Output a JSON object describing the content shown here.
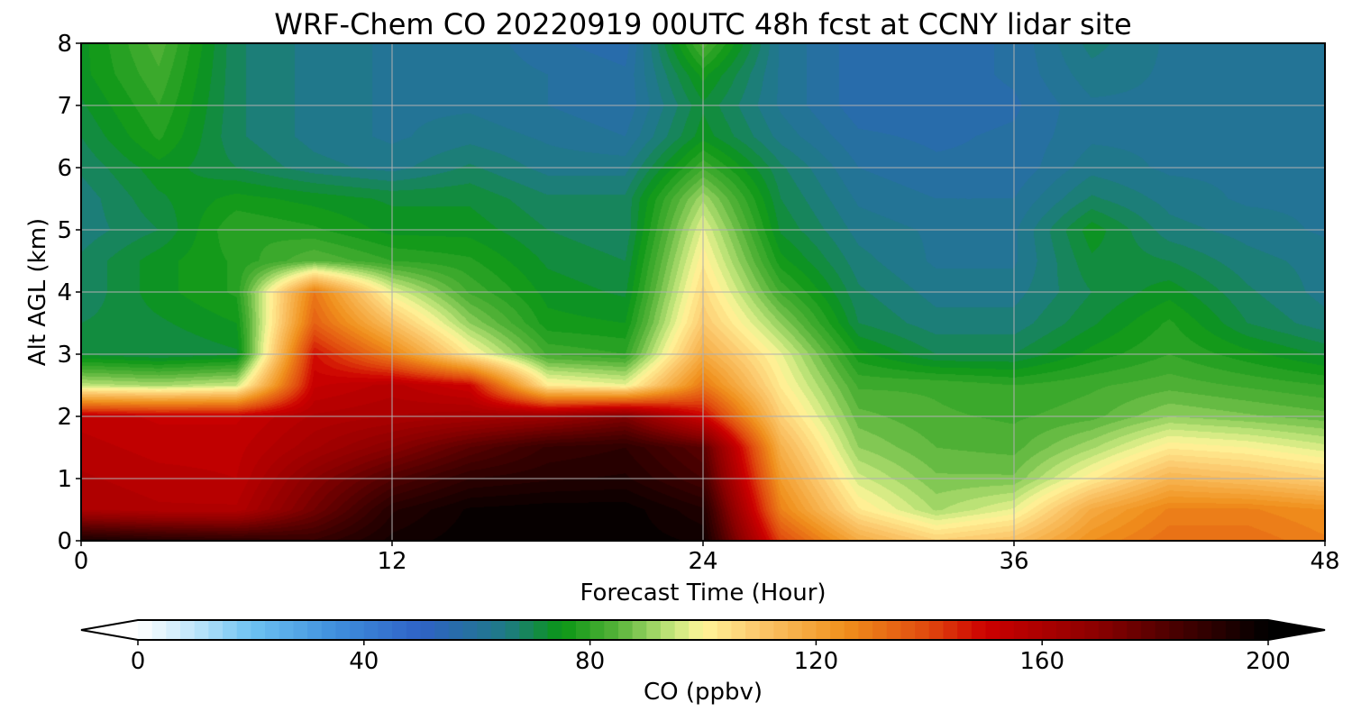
{
  "chart_data": {
    "type": "heatmap",
    "title": "WRF-Chem CO  20220919 00UTC 48h fcst at CCNY lidar site",
    "xlabel": "Forecast Time (Hour)",
    "ylabel": "Alt AGL (km)",
    "xlim": [
      0,
      48
    ],
    "ylim": [
      0,
      8
    ],
    "x_ticks": [
      "0",
      "12",
      "24",
      "36",
      "48"
    ],
    "y_ticks": [
      "0",
      "1",
      "2",
      "3",
      "4",
      "5",
      "6",
      "7",
      "8"
    ],
    "grid": true,
    "colorbar": {
      "label": "CO  (ppbv)",
      "range": [
        0,
        200
      ],
      "ticks": [
        "0",
        "40",
        "80",
        "120",
        "160",
        "200"
      ],
      "extend": "both",
      "stops": [
        {
          "v": 0,
          "c": "#ffffff"
        },
        {
          "v": 10,
          "c": "#bfe6fa"
        },
        {
          "v": 20,
          "c": "#6ec3f2"
        },
        {
          "v": 35,
          "c": "#3f8fdc"
        },
        {
          "v": 50,
          "c": "#2f62c6"
        },
        {
          "v": 65,
          "c": "#1f7a86"
        },
        {
          "v": 75,
          "c": "#0a9615"
        },
        {
          "v": 85,
          "c": "#58b43a"
        },
        {
          "v": 95,
          "c": "#c9e87e"
        },
        {
          "v": 100,
          "c": "#fff59a"
        },
        {
          "v": 110,
          "c": "#fbc66b"
        },
        {
          "v": 125,
          "c": "#f0901c"
        },
        {
          "v": 140,
          "c": "#e0480e"
        },
        {
          "v": 150,
          "c": "#cc0000"
        },
        {
          "v": 170,
          "c": "#8a0000"
        },
        {
          "v": 185,
          "c": "#420000"
        },
        {
          "v": 200,
          "c": "#000000"
        }
      ]
    },
    "field": {
      "x": [
        0,
        3,
        6,
        9,
        12,
        15,
        18,
        21,
        24,
        27,
        30,
        33,
        36,
        39,
        42,
        45,
        48
      ],
      "y": [
        0,
        0.5,
        1,
        1.5,
        2,
        2.5,
        3,
        3.5,
        4,
        4.5,
        5,
        5.5,
        6,
        6.5,
        7,
        7.5,
        8
      ],
      "z": [
        [
          195,
          192,
          190,
          188,
          196,
          199,
          199,
          199,
          197,
          140,
          118,
          108,
          112,
          125,
          132,
          132,
          128
        ],
        [
          160,
          158,
          158,
          175,
          192,
          198,
          199,
          199,
          193,
          128,
          103,
          92,
          98,
          118,
          128,
          128,
          125
        ],
        [
          158,
          156,
          155,
          170,
          182,
          190,
          192,
          193,
          185,
          122,
          96,
          88,
          88,
          102,
          115,
          112,
          108
        ],
        [
          156,
          154,
          154,
          162,
          170,
          180,
          188,
          190,
          180,
          116,
          90,
          85,
          84,
          92,
          102,
          100,
          96
        ],
        [
          154,
          152,
          152,
          158,
          160,
          162,
          165,
          172,
          150,
          108,
          86,
          83,
          82,
          84,
          90,
          88,
          86
        ],
        [
          94,
          92,
          95,
          152,
          156,
          150,
          102,
          98,
          130,
          102,
          82,
          82,
          80,
          82,
          84,
          82,
          80
        ],
        [
          72,
          70,
          72,
          148,
          128,
          102,
          82,
          80,
          118,
          98,
          76,
          70,
          70,
          76,
          80,
          76,
          72
        ],
        [
          70,
          72,
          75,
          135,
          112,
          90,
          76,
          75,
          110,
          90,
          70,
          66,
          66,
          72,
          78,
          70,
          66
        ],
        [
          68,
          74,
          78,
          130,
          98,
          82,
          74,
          72,
          106,
          82,
          68,
          64,
          64,
          70,
          74,
          68,
          64
        ],
        [
          68,
          74,
          78,
          85,
          80,
          78,
          72,
          70,
          102,
          76,
          66,
          62,
          62,
          72,
          70,
          66,
          64
        ],
        [
          66,
          70,
          80,
          78,
          74,
          74,
          70,
          68,
          98,
          72,
          64,
          62,
          62,
          74,
          66,
          64,
          62
        ],
        [
          66,
          72,
          76,
          74,
          72,
          72,
          68,
          68,
          92,
          70,
          62,
          60,
          60,
          68,
          64,
          62,
          62
        ],
        [
          68,
          74,
          70,
          66,
          64,
          68,
          64,
          64,
          82,
          68,
          60,
          58,
          58,
          64,
          62,
          62,
          62
        ],
        [
          70,
          78,
          68,
          64,
          62,
          64,
          62,
          60,
          74,
          64,
          58,
          57,
          58,
          62,
          62,
          62,
          62
        ],
        [
          72,
          80,
          68,
          64,
          62,
          62,
          60,
          58,
          72,
          62,
          56,
          56,
          57,
          62,
          62,
          62,
          62
        ],
        [
          74,
          82,
          68,
          64,
          62,
          62,
          60,
          58,
          76,
          62,
          56,
          56,
          58,
          64,
          62,
          62,
          62
        ],
        [
          74,
          84,
          68,
          64,
          62,
          62,
          58,
          56,
          84,
          62,
          56,
          56,
          58,
          66,
          62,
          62,
          62
        ]
      ]
    }
  }
}
